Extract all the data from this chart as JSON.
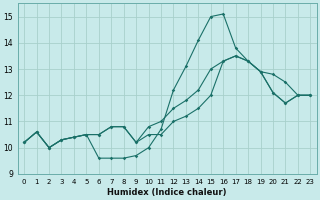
{
  "title": "",
  "xlabel": "Humidex (Indice chaleur)",
  "bg_color": "#c8eaea",
  "grid_color": "#a8d0cc",
  "line_color": "#1a7068",
  "xlim": [
    -0.5,
    23.5
  ],
  "ylim": [
    9,
    15.5
  ],
  "yticks": [
    9,
    10,
    11,
    12,
    13,
    14,
    15
  ],
  "xticks": [
    0,
    1,
    2,
    3,
    4,
    5,
    6,
    7,
    8,
    9,
    10,
    11,
    12,
    13,
    14,
    15,
    16,
    17,
    18,
    19,
    20,
    21,
    22,
    23
  ],
  "series": [
    [
      10.2,
      10.6,
      10.0,
      10.3,
      10.4,
      10.5,
      9.6,
      9.6,
      9.6,
      9.7,
      10.0,
      10.7,
      12.2,
      13.1,
      14.1,
      15.0,
      15.1,
      13.8,
      13.3,
      12.9,
      12.1,
      11.7,
      12.0,
      12.0
    ],
    [
      10.2,
      10.6,
      10.0,
      10.3,
      10.4,
      10.5,
      10.5,
      10.8,
      10.8,
      10.2,
      10.8,
      11.0,
      11.5,
      11.8,
      12.2,
      13.0,
      13.3,
      13.5,
      13.3,
      12.9,
      12.1,
      11.7,
      12.0,
      12.0
    ],
    [
      10.2,
      10.6,
      10.0,
      10.3,
      10.4,
      10.5,
      10.5,
      10.8,
      10.8,
      10.2,
      10.5,
      10.5,
      11.0,
      11.2,
      11.5,
      12.0,
      13.3,
      13.5,
      13.3,
      12.9,
      12.8,
      12.5,
      12.0,
      12.0
    ]
  ]
}
